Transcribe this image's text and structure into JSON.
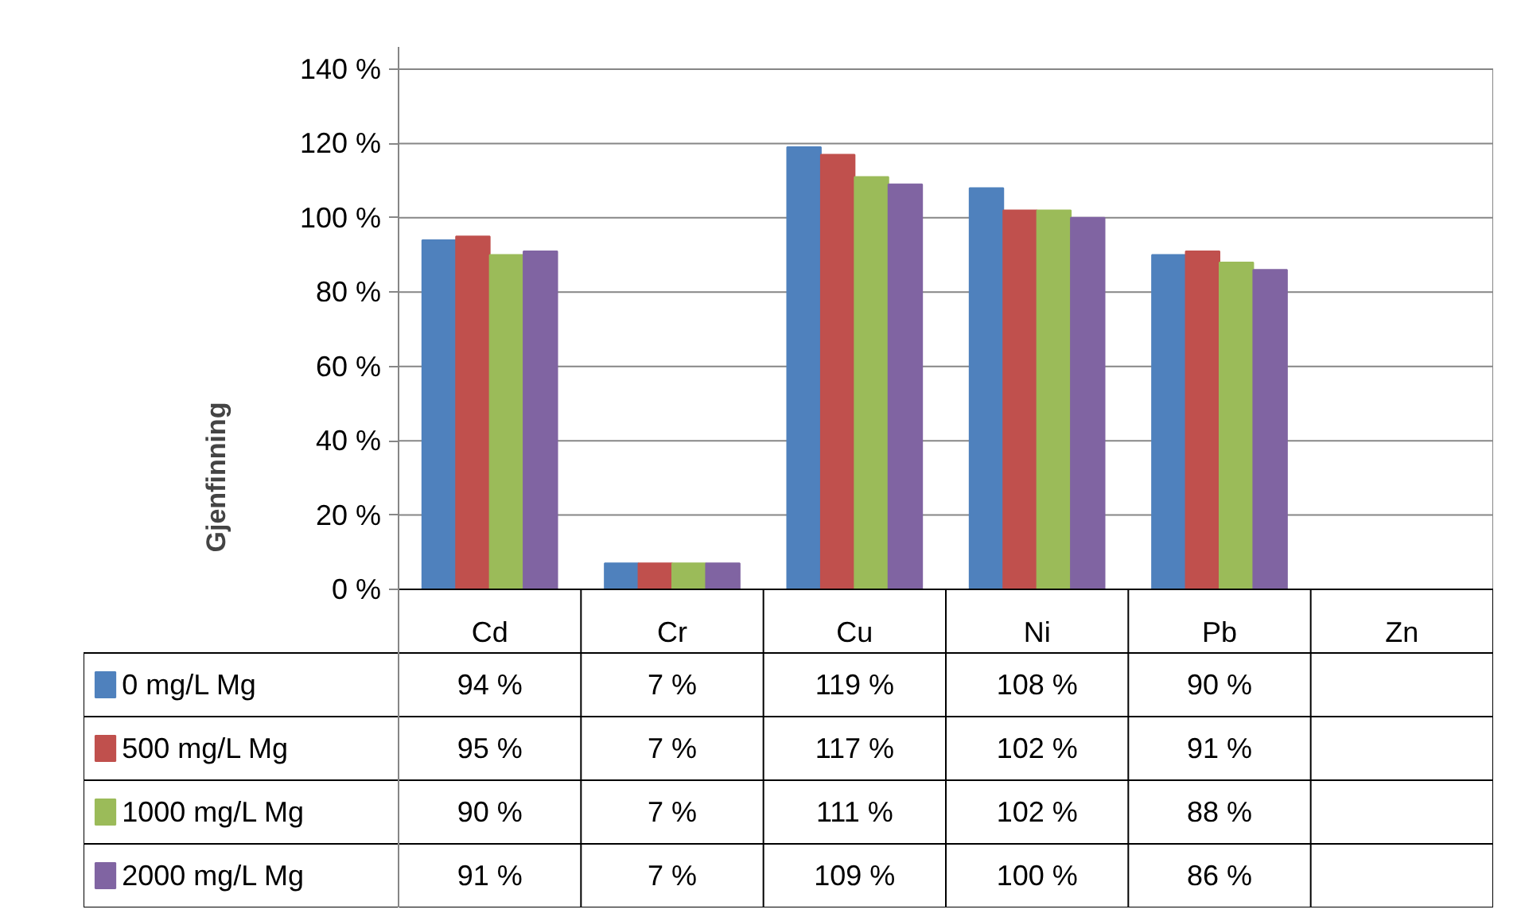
{
  "chart_data": {
    "type": "bar",
    "ylabel": "Gjenfinning",
    "categories": [
      "Cd",
      "Cr",
      "Cu",
      "Ni",
      "Pb",
      "Zn"
    ],
    "series": [
      {
        "name": "0 mg/L Mg",
        "color": "#4f81bd",
        "values": [
          94,
          7,
          119,
          108,
          90,
          null
        ],
        "value_labels": [
          "94 %",
          "7 %",
          "119 %",
          "108 %",
          "90 %",
          null
        ]
      },
      {
        "name": "500 mg/L Mg",
        "color": "#c0504d",
        "values": [
          95,
          7,
          117,
          102,
          91,
          null
        ],
        "value_labels": [
          "95 %",
          "7 %",
          "117 %",
          "102 %",
          "91 %",
          null
        ]
      },
      {
        "name": "1000 mg/L Mg",
        "color": "#9bbb59",
        "values": [
          90,
          7,
          111,
          102,
          88,
          null
        ],
        "value_labels": [
          "90 %",
          "7 %",
          "111 %",
          "102 %",
          "88 %",
          null
        ]
      },
      {
        "name": "2000 mg/L Mg",
        "color": "#8064a2",
        "values": [
          91,
          7,
          109,
          100,
          86,
          null
        ],
        "value_labels": [
          "91 %",
          "7 %",
          "109 %",
          "100 %",
          "86 %",
          null
        ]
      }
    ],
    "ylim": [
      0,
      140
    ],
    "yticks": [
      {
        "value": 0,
        "label": "0 %"
      },
      {
        "value": 20,
        "label": "20 %"
      },
      {
        "value": 40,
        "label": "40 %"
      },
      {
        "value": 60,
        "label": "60 %"
      },
      {
        "value": 80,
        "label": "80 %"
      },
      {
        "value": 100,
        "label": "100 %"
      },
      {
        "value": 120,
        "label": "120 %"
      },
      {
        "value": 140,
        "label": "140 %"
      }
    ],
    "grid": "y",
    "legend": "bottom"
  }
}
